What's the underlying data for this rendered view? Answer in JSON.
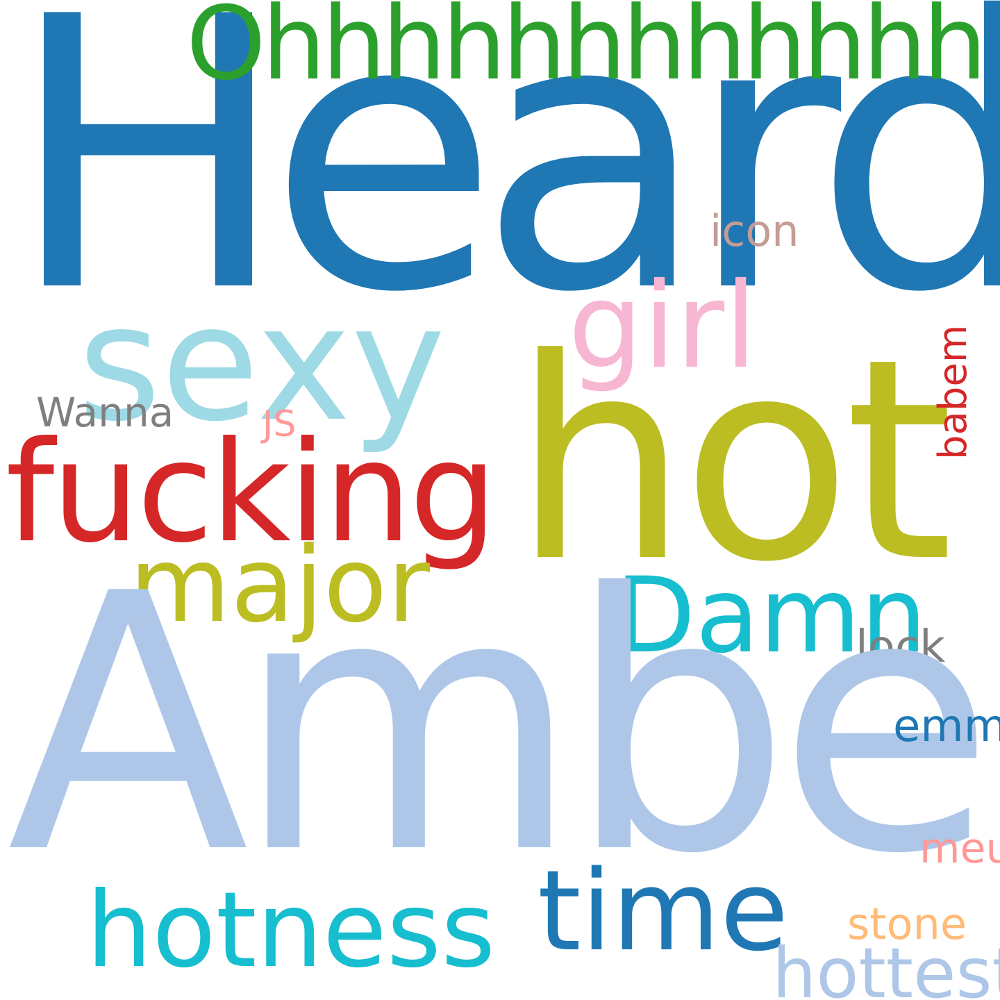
{
  "words": [
    {
      "text": "Heard",
      "color": "#1f77b4"
    },
    {
      "text": "Ohhhhhhhhhhhh",
      "color": "#2ca02c"
    },
    {
      "text": "sexy",
      "color": "#9edae5"
    },
    {
      "text": "girl",
      "color": "#f7b6d2"
    },
    {
      "text": "icon",
      "color": "#c49c94"
    },
    {
      "text": "hot",
      "color": "#bcbd22"
    },
    {
      "text": "Wanna",
      "color": "#7f7f7f"
    },
    {
      "text": "JS",
      "color": "#ff9896"
    },
    {
      "text": "babem",
      "color": "#d62728"
    },
    {
      "text": "fucking",
      "color": "#d62728"
    },
    {
      "text": "major",
      "color": "#bcbd22"
    },
    {
      "text": "Damn",
      "color": "#17becf"
    },
    {
      "text": "lock",
      "color": "#7f7f7f"
    },
    {
      "text": "Amber",
      "color": "#aec7e8"
    },
    {
      "text": "emma",
      "color": "#1f77b4"
    },
    {
      "text": "meu",
      "color": "#ff9896"
    },
    {
      "text": "time",
      "color": "#1f77b4"
    },
    {
      "text": "hotness",
      "color": "#17becf"
    },
    {
      "text": "stone",
      "color": "#ffbb78"
    },
    {
      "text": "hottest",
      "color": "#aec7e8"
    }
  ]
}
